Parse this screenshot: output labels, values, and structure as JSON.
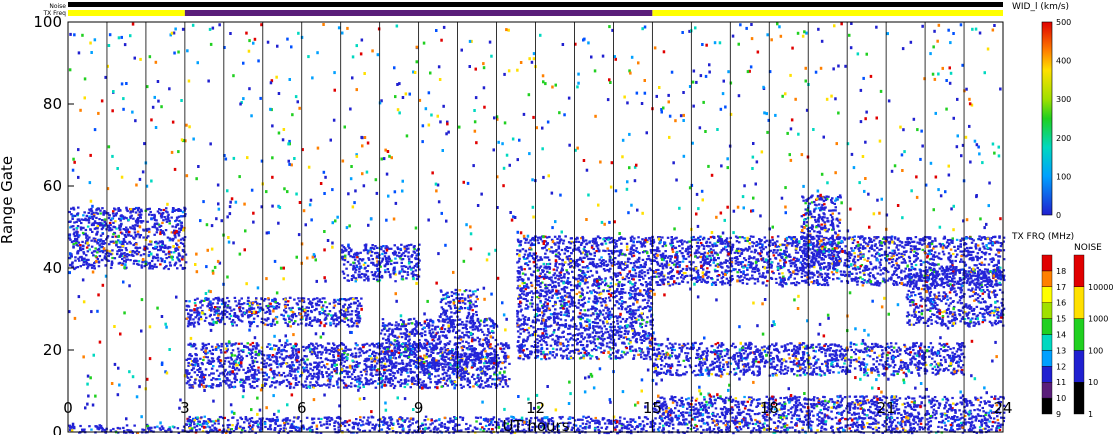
{
  "chart_data": {
    "type": "heatmap",
    "title": "",
    "xlabel": "UT hours",
    "ylabel": "Range Gate",
    "xlim": [
      0,
      24
    ],
    "ylim": [
      0,
      100
    ],
    "x_ticks": [
      "0",
      "3",
      "6",
      "9",
      "12",
      "15",
      "18",
      "21",
      "24"
    ],
    "y_ticks": [
      "0",
      "20",
      "40",
      "60",
      "80",
      "100"
    ],
    "grid": "vertical lines every hour",
    "top_bars": {
      "noise_label": "Noise",
      "txfreq_label": "TX Freq",
      "txfreq_segments": [
        {
          "start": 0,
          "end": 3,
          "color": "#ffff00"
        },
        {
          "start": 3,
          "end": 15,
          "color": "#5a1e7a"
        },
        {
          "start": 15,
          "end": 24,
          "color": "#ffff00"
        }
      ]
    },
    "colorbars": {
      "width": {
        "label": "WID_l (km/s)",
        "ticks": [
          "0",
          "100",
          "200",
          "300",
          "400",
          "500"
        ],
        "range": [
          0,
          500
        ]
      },
      "txfreq": {
        "label": "TX FRQ (MHz)",
        "ticks": [
          "9",
          "10",
          "11",
          "12",
          "13",
          "14",
          "15",
          "16",
          "17",
          "18"
        ],
        "colors": [
          "#000000",
          "#5a1e7a",
          "#2020d0",
          "#00a0ff",
          "#00d8c0",
          "#20d020",
          "#a0e000",
          "#ffff00",
          "#ff8000",
          "#e00000"
        ]
      },
      "noise": {
        "label": "NOISE",
        "ticks": [
          "1",
          "10",
          "100",
          "1000",
          "10000"
        ],
        "colors": [
          "#000000",
          "#2020d0",
          "#20d020",
          "#ffe000",
          "#e00000"
        ]
      }
    },
    "bands": [
      {
        "x": [
          0,
          3
        ],
        "y": [
          0,
          2
        ]
      },
      {
        "x": [
          3,
          24
        ],
        "y": [
          0,
          4
        ]
      },
      {
        "x": [
          0,
          3
        ],
        "y": [
          40,
          55
        ]
      },
      {
        "x": [
          3,
          7.5
        ],
        "y": [
          26,
          33
        ]
      },
      {
        "x": [
          7,
          9
        ],
        "y": [
          37,
          46
        ]
      },
      {
        "x": [
          3,
          11.3
        ],
        "y": [
          11,
          22
        ]
      },
      {
        "x": [
          8,
          11
        ],
        "y": [
          15,
          28
        ]
      },
      {
        "x": [
          9.5,
          10.5
        ],
        "y": [
          28,
          35
        ]
      },
      {
        "x": [
          11.5,
          15
        ],
        "y": [
          18,
          48
        ]
      },
      {
        "x": [
          15,
          24
        ],
        "y": [
          36,
          48
        ]
      },
      {
        "x": [
          15,
          23
        ],
        "y": [
          14,
          22
        ]
      },
      {
        "x": [
          15,
          24
        ],
        "y": [
          4,
          9
        ]
      },
      {
        "x": [
          21.5,
          24
        ],
        "y": [
          26,
          40
        ]
      },
      {
        "x": [
          18.8,
          19.8
        ],
        "y": [
          40,
          58
        ]
      }
    ]
  }
}
